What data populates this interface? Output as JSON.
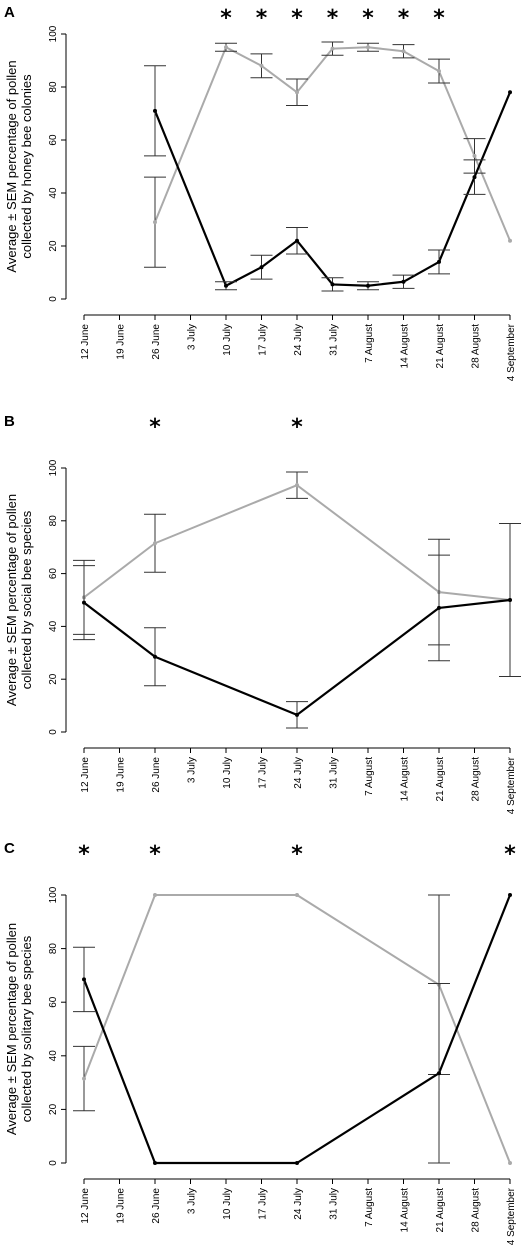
{
  "chart_data": [
    {
      "type": "line",
      "panel_label": "A",
      "ylabel": [
        "Average ± SEM percentage of pollen",
        "collected by honey bee colonies"
      ],
      "x": [
        "12 June",
        "19 June",
        "26 June",
        "3 July",
        "10 July",
        "17 July",
        "24 July",
        "31 July",
        "7 August",
        "14 August",
        "21 August",
        "28 August",
        "4 September"
      ],
      "ylim": [
        0,
        100
      ],
      "yticks": [
        0,
        20,
        40,
        60,
        80,
        100
      ],
      "series": [
        {
          "color": "#000000",
          "points": [
            {
              "x": "26 June",
              "y": 71,
              "err": 17
            },
            {
              "x": "10 July",
              "y": 5,
              "err": 1.5
            },
            {
              "x": "17 July",
              "y": 12,
              "err": 4.5
            },
            {
              "x": "24 July",
              "y": 22,
              "err": 5
            },
            {
              "x": "31 July",
              "y": 5.5,
              "err": 2.5
            },
            {
              "x": "7 August",
              "y": 5,
              "err": 1.5
            },
            {
              "x": "14 August",
              "y": 6.5,
              "err": 2.5
            },
            {
              "x": "21 August",
              "y": 14,
              "err": 4.5
            },
            {
              "x": "28 August",
              "y": 46,
              "err": 6.5
            },
            {
              "x": "4 September",
              "y": 78,
              "err": 0
            }
          ]
        },
        {
          "color": "#aaaaaa",
          "points": [
            {
              "x": "26 June",
              "y": 29,
              "err": 17
            },
            {
              "x": "10 July",
              "y": 95,
              "err": 1.5
            },
            {
              "x": "17 July",
              "y": 88,
              "err": 4.5
            },
            {
              "x": "24 July",
              "y": 78,
              "err": 5
            },
            {
              "x": "31 July",
              "y": 94.5,
              "err": 2.5
            },
            {
              "x": "7 August",
              "y": 95,
              "err": 1.5
            },
            {
              "x": "14 August",
              "y": 93.5,
              "err": 2.5
            },
            {
              "x": "21 August",
              "y": 86,
              "err": 4.5
            },
            {
              "x": "28 August",
              "y": 54,
              "err": 6.5
            },
            {
              "x": "4 September",
              "y": 22,
              "err": 0
            }
          ]
        }
      ],
      "significance": [
        "10 July",
        "17 July",
        "24 July",
        "31 July",
        "7 August",
        "14 August",
        "21 August"
      ],
      "star": "*"
    },
    {
      "type": "line",
      "panel_label": "B",
      "ylabel": [
        "Average ± SEM percentage of pollen",
        "collected by social bee species"
      ],
      "x": [
        "12 June",
        "19 June",
        "26 June",
        "3 July",
        "10 July",
        "17 July",
        "24 July",
        "31 July",
        "7 August",
        "14 August",
        "21 August",
        "28 August",
        "4 September"
      ],
      "ylim": [
        0,
        100
      ],
      "yticks": [
        0,
        20,
        40,
        60,
        80,
        100
      ],
      "series": [
        {
          "color": "#000000",
          "points": [
            {
              "x": "12 June",
              "y": 49,
              "err": 14
            },
            {
              "x": "26 June",
              "y": 28.5,
              "err": 11
            },
            {
              "x": "24 July",
              "y": 6.5,
              "err": 5
            },
            {
              "x": "21 August",
              "y": 47,
              "err": 20
            },
            {
              "x": "4 September",
              "y": 50,
              "err": 29
            }
          ]
        },
        {
          "color": "#aaaaaa",
          "points": [
            {
              "x": "12 June",
              "y": 51,
              "err": 14
            },
            {
              "x": "26 June",
              "y": 71.5,
              "err": 11
            },
            {
              "x": "24 July",
              "y": 93.5,
              "err": 5
            },
            {
              "x": "21 August",
              "y": 53,
              "err": 20
            },
            {
              "x": "4 September",
              "y": 50,
              "err": 29
            }
          ]
        }
      ],
      "significance": [
        "26 June",
        "24 July"
      ],
      "star": "*"
    },
    {
      "type": "line",
      "panel_label": "C",
      "ylabel": [
        "Average ± SEM percentage of pollen",
        "collected by solitary bee species"
      ],
      "x": [
        "12 June",
        "19 June",
        "26 June",
        "3 July",
        "10 July",
        "17 July",
        "24 July",
        "31 July",
        "7 August",
        "14 August",
        "21 August",
        "28 August",
        "4 September"
      ],
      "ylim": [
        0,
        100
      ],
      "yticks": [
        0,
        20,
        40,
        60,
        80,
        100
      ],
      "series": [
        {
          "color": "#000000",
          "points": [
            {
              "x": "12 June",
              "y": 68.5,
              "err": 12
            },
            {
              "x": "26 June",
              "y": 0,
              "err": 0
            },
            {
              "x": "24 July",
              "y": 0,
              "err": 0
            },
            {
              "x": "21 August",
              "y": 33.5,
              "err": 33.5
            },
            {
              "x": "4 September",
              "y": 100,
              "err": 0
            }
          ]
        },
        {
          "color": "#aaaaaa",
          "points": [
            {
              "x": "12 June",
              "y": 31.5,
              "err": 12
            },
            {
              "x": "26 June",
              "y": 100,
              "err": 0
            },
            {
              "x": "24 July",
              "y": 100,
              "err": 0
            },
            {
              "x": "21 August",
              "y": 66.5,
              "err": 33.5
            },
            {
              "x": "4 September",
              "y": 0,
              "err": 0
            }
          ]
        }
      ],
      "significance": [
        "12 June",
        "26 June",
        "24 July",
        "4 September"
      ],
      "star": "*"
    }
  ]
}
